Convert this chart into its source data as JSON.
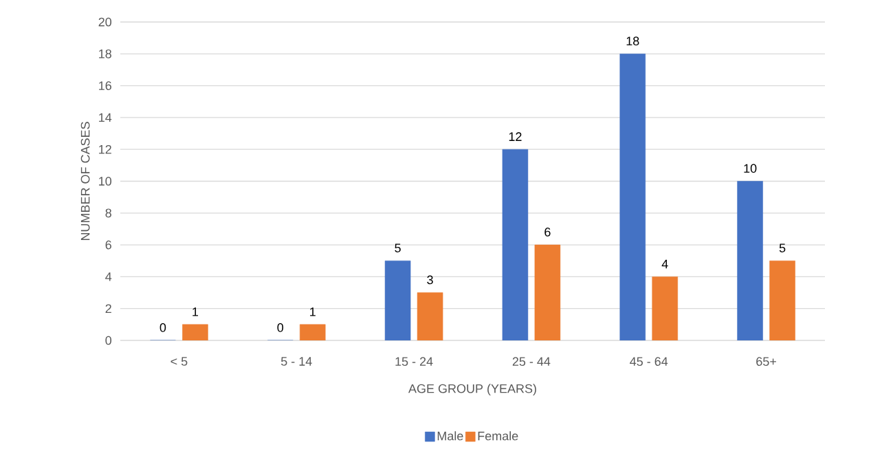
{
  "chart_data": {
    "type": "bar",
    "xlabel": "AGE GROUP (YEARS)",
    "ylabel": "NUMBER OF CASES",
    "categories": [
      "< 5",
      "5 - 14",
      "15 - 24",
      "25 - 44",
      "45 - 64",
      "65+"
    ],
    "series": [
      {
        "name": "Male",
        "color": "#4472c4",
        "values": [
          0,
          0,
          5,
          12,
          18,
          10
        ]
      },
      {
        "name": "Female",
        "color": "#ed7d31",
        "values": [
          1,
          1,
          3,
          6,
          4,
          5
        ]
      }
    ],
    "ylim": [
      0,
      20
    ],
    "yticks": [
      0,
      2,
      4,
      6,
      8,
      10,
      12,
      14,
      16,
      18,
      20
    ],
    "grid": "y",
    "legend": "bottom",
    "data_labels": true
  }
}
